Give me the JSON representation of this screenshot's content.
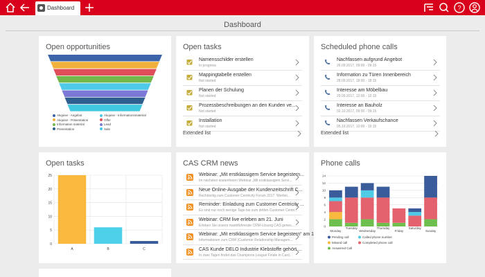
{
  "topbar": {
    "tab_label": "Dashboard",
    "icons": [
      "home-icon",
      "back-icon",
      "add-tab-icon",
      "filter-icon",
      "search-icon",
      "help-icon",
      "user-icon"
    ]
  },
  "page": {
    "title": "Dashboard"
  },
  "open_opportunities": {
    "title": "Open opportunities",
    "legend": [
      {
        "label": "Akquise - Angebot",
        "color": "#3c64a8"
      },
      {
        "label": "Akquise - Informationsmaterial",
        "color": "#4fc9e8"
      },
      {
        "label": "Akquise - Präsentation",
        "color": "#f0b23c"
      },
      {
        "label": "Offer",
        "color": "#e04e5a"
      },
      {
        "label": "Information material",
        "color": "#72b84a"
      },
      {
        "label": "Lead",
        "color": "#7c79d6"
      },
      {
        "label": "Presentation",
        "color": "#2f5f8e"
      },
      {
        "label": "Sale",
        "color": "#40c8e0"
      }
    ],
    "funnel_colors": [
      "#3c64a8",
      "#f0b23c",
      "#e04e5a",
      "#72b84a",
      "#4fc9e8",
      "#7c79d6",
      "#2f5f8e",
      "#40c8e0"
    ]
  },
  "open_tasks_list": {
    "title": "Open tasks",
    "items": [
      {
        "title": "Namensschilder erstellen",
        "status": "In progress"
      },
      {
        "title": "Mappingtabelle erstellen",
        "status": "Not started"
      },
      {
        "title": "Planen der Schulung",
        "status": "Not started"
      },
      {
        "title": "Prozessbeschreibungen an den Kunden ve...",
        "status": "Not started"
      },
      {
        "title": "Installation",
        "status": "Not started"
      }
    ],
    "extended_label": "Extended list"
  },
  "scheduled_calls": {
    "title": "Scheduled phone calls",
    "items": [
      {
        "title": "Nachfassen aufgrund Angebot",
        "date": "26.09.2017, 09:00 - 09:15"
      },
      {
        "title": "Information zu Türen Innenbereich",
        "date": "28.09.2017, 18:00 - 18:15"
      },
      {
        "title": "Interesse am Möbelbau",
        "date": "29.09.2017, 12:00 - 12:15"
      },
      {
        "title": "Interesse an Bauholz",
        "date": "02.10.2017, 09:00 - 09:15"
      },
      {
        "title": "Nachfassen Verkaufschance",
        "date": "05.10.2017, 10:00 - 10:15"
      }
    ],
    "extended_label": "Extended list"
  },
  "open_tasks_chart": {
    "title": "Open tasks",
    "chart_data": {
      "type": "bar",
      "categories": [
        "A",
        "B",
        "C"
      ],
      "values": [
        25,
        6,
        1
      ],
      "colors": [
        "#f9b83e",
        "#4dd0e9",
        "#3b5c9a"
      ],
      "yticks": [
        0,
        5,
        10,
        15,
        20,
        25
      ],
      "ylim": [
        0,
        25
      ]
    }
  },
  "news": {
    "title": "CAS CRM news",
    "items": [
      {
        "title": "Webinar: „Mit erstklassigem Service begeistern...",
        "desc": "Im nächsten kostenfreien Webinar „Mit erstklassigem Servi..."
      },
      {
        "title": "Neue Online-Ausgabe der Kundenzeitschrift C...",
        "desc": "Rechtzeitig zum Customer Centricity Forum 2017: Werfen..."
      },
      {
        "title": "Reminder: Einladung zum Customer Centricity ...",
        "desc": "Es sind nur noch wenige Tage bis zum dritten Customer Centri..."
      },
      {
        "title": "Webinar: CRM live erleben am 21. Juni",
        "desc": "Erleben Sie unsere marktführende CRM-Lösung CAS genes..."
      },
      {
        "title": "Webinar: „Mit erstklassigem Service begeistern“ am 19. Juni",
        "desc": "Informationen zum CRM (Customer Relationship Managem..."
      },
      {
        "title": "CAS Kunde DELO Industrie Klebstoffe gehört ...",
        "desc": "In zwei Tagen findet das Champions League Finale in Card..."
      }
    ]
  },
  "phone_calls": {
    "title": "Phone calls",
    "chart_data": {
      "type": "bar",
      "stacked": true,
      "categories": [
        "Monday",
        "Tuesday",
        "Wednesday",
        "Thursday",
        "Friday",
        "Saturday",
        "Sunday"
      ],
      "yticks": [
        0,
        2,
        4,
        6,
        8,
        10,
        12,
        14
      ],
      "ylim": [
        0,
        14
      ],
      "series": [
        {
          "name": "Answered Call",
          "color": "#6fbf4f",
          "values": [
            2,
            1,
            2,
            1,
            1,
            0,
            2
          ]
        },
        {
          "name": "Missed call",
          "color": "#f9b83e",
          "values": [
            2,
            0,
            0,
            0,
            0,
            0,
            0
          ]
        },
        {
          "name": "Completed phone call",
          "color": "#e3626d",
          "values": [
            3,
            7,
            6,
            7,
            4,
            3,
            6
          ]
        },
        {
          "name": "Called phone number",
          "color": "#4fcbe6",
          "values": [
            1,
            0,
            2,
            0,
            0,
            1,
            0
          ]
        },
        {
          "name": "Pending call",
          "color": "#3b5c9a",
          "values": [
            2,
            3,
            2,
            3,
            0,
            1,
            6
          ]
        }
      ],
      "legend_order": [
        "Pending call",
        "Called phone number",
        "Missed call",
        "Completed phone call",
        "Answered Call"
      ]
    }
  }
}
